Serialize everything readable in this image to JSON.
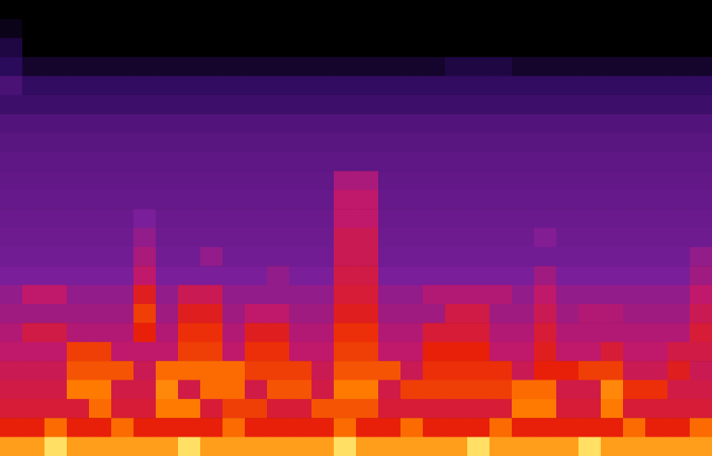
{
  "chart_data": {
    "type": "heatmap",
    "tick_labels": false,
    "zlim": [
      0,
      100
    ],
    "cells": [
      [
        0,
        0,
        0,
        0,
        0,
        0,
        0,
        0,
        0,
        0,
        0,
        0,
        0,
        0,
        0,
        0,
        0,
        0,
        0,
        0,
        0,
        0,
        0,
        0,
        0,
        0,
        0,
        0,
        0,
        0,
        0,
        0
      ],
      [
        5,
        0,
        0,
        0,
        0,
        0,
        0,
        0,
        0,
        0,
        0,
        0,
        0,
        0,
        0,
        0,
        0,
        0,
        0,
        0,
        0,
        0,
        0,
        0,
        0,
        0,
        0,
        0,
        0,
        0,
        0,
        0
      ],
      [
        15,
        0,
        0,
        0,
        0,
        0,
        0,
        0,
        0,
        0,
        0,
        0,
        0,
        0,
        0,
        0,
        0,
        0,
        0,
        0,
        0,
        0,
        0,
        0,
        0,
        0,
        0,
        0,
        0,
        0,
        0,
        0
      ],
      [
        20,
        10,
        10,
        10,
        10,
        10,
        10,
        10,
        10,
        10,
        10,
        10,
        10,
        10,
        10,
        10,
        10,
        10,
        10,
        10,
        15,
        15,
        15,
        10,
        10,
        10,
        10,
        10,
        10,
        10,
        10,
        10
      ],
      [
        28,
        22,
        22,
        22,
        22,
        22,
        22,
        22,
        22,
        22,
        22,
        22,
        22,
        22,
        22,
        22,
        22,
        22,
        22,
        22,
        22,
        22,
        22,
        22,
        22,
        22,
        22,
        22,
        22,
        22,
        22,
        22
      ],
      [
        25,
        25,
        25,
        25,
        25,
        25,
        25,
        25,
        25,
        25,
        25,
        25,
        25,
        25,
        25,
        25,
        25,
        25,
        25,
        25,
        25,
        25,
        25,
        25,
        25,
        25,
        25,
        25,
        25,
        25,
        25,
        25
      ],
      [
        30,
        30,
        30,
        30,
        30,
        30,
        30,
        30,
        30,
        30,
        30,
        30,
        30,
        30,
        30,
        30,
        30,
        30,
        30,
        30,
        30,
        30,
        30,
        30,
        30,
        30,
        30,
        30,
        30,
        30,
        30,
        30
      ],
      [
        32,
        32,
        32,
        32,
        32,
        32,
        32,
        32,
        32,
        32,
        32,
        32,
        32,
        32,
        32,
        32,
        32,
        32,
        32,
        32,
        32,
        32,
        32,
        32,
        32,
        32,
        32,
        32,
        32,
        32,
        32,
        32
      ],
      [
        33,
        33,
        33,
        33,
        33,
        33,
        33,
        33,
        33,
        33,
        33,
        33,
        33,
        33,
        33,
        33,
        33,
        33,
        33,
        33,
        33,
        33,
        33,
        33,
        33,
        33,
        33,
        33,
        33,
        33,
        33,
        33
      ],
      [
        34,
        34,
        34,
        34,
        34,
        34,
        34,
        34,
        34,
        34,
        34,
        34,
        34,
        34,
        34,
        50,
        50,
        34,
        34,
        34,
        34,
        34,
        34,
        34,
        34,
        34,
        34,
        34,
        34,
        34,
        34,
        34
      ],
      [
        35,
        35,
        35,
        35,
        35,
        35,
        35,
        35,
        35,
        35,
        35,
        35,
        35,
        35,
        35,
        55,
        55,
        35,
        35,
        35,
        35,
        35,
        35,
        35,
        35,
        35,
        35,
        35,
        35,
        35,
        35,
        35
      ],
      [
        36,
        36,
        36,
        36,
        36,
        36,
        40,
        36,
        36,
        36,
        36,
        36,
        36,
        36,
        36,
        55,
        55,
        36,
        36,
        36,
        36,
        36,
        36,
        36,
        36,
        36,
        36,
        36,
        36,
        36,
        36,
        36
      ],
      [
        37,
        37,
        37,
        37,
        37,
        37,
        45,
        37,
        37,
        37,
        37,
        37,
        37,
        37,
        37,
        58,
        58,
        37,
        37,
        37,
        37,
        37,
        37,
        37,
        42,
        37,
        37,
        37,
        37,
        37,
        37,
        37
      ],
      [
        38,
        38,
        38,
        38,
        38,
        38,
        50,
        38,
        38,
        45,
        38,
        38,
        38,
        38,
        38,
        58,
        58,
        38,
        38,
        38,
        38,
        38,
        38,
        38,
        38,
        38,
        38,
        38,
        38,
        38,
        38,
        45
      ],
      [
        40,
        40,
        40,
        40,
        40,
        40,
        55,
        40,
        40,
        40,
        40,
        40,
        45,
        40,
        40,
        60,
        60,
        40,
        40,
        40,
        40,
        40,
        40,
        40,
        48,
        40,
        40,
        40,
        40,
        40,
        40,
        48
      ],
      [
        45,
        55,
        55,
        45,
        45,
        45,
        65,
        45,
        58,
        58,
        45,
        45,
        45,
        45,
        45,
        62,
        62,
        45,
        45,
        52,
        52,
        52,
        52,
        45,
        55,
        45,
        45,
        45,
        45,
        45,
        45,
        55
      ],
      [
        48,
        48,
        48,
        48,
        48,
        48,
        72,
        48,
        65,
        65,
        48,
        55,
        55,
        48,
        48,
        65,
        65,
        48,
        48,
        48,
        60,
        60,
        48,
        48,
        58,
        48,
        52,
        52,
        48,
        48,
        48,
        58
      ],
      [
        52,
        60,
        60,
        52,
        52,
        52,
        68,
        52,
        70,
        70,
        52,
        65,
        65,
        52,
        52,
        70,
        70,
        52,
        52,
        62,
        62,
        62,
        52,
        52,
        62,
        52,
        52,
        52,
        52,
        52,
        52,
        62
      ],
      [
        55,
        55,
        55,
        72,
        72,
        55,
        55,
        55,
        72,
        72,
        55,
        70,
        70,
        55,
        55,
        72,
        72,
        55,
        55,
        68,
        68,
        68,
        55,
        55,
        65,
        55,
        55,
        62,
        55,
        55,
        60,
        60
      ],
      [
        58,
        58,
        58,
        75,
        75,
        75,
        58,
        78,
        78,
        78,
        78,
        72,
        72,
        72,
        58,
        75,
        75,
        75,
        58,
        70,
        70,
        70,
        70,
        58,
        68,
        68,
        72,
        72,
        58,
        58,
        65,
        58
      ],
      [
        60,
        60,
        60,
        80,
        80,
        60,
        60,
        82,
        60,
        78,
        78,
        60,
        75,
        75,
        60,
        80,
        80,
        60,
        72,
        72,
        72,
        72,
        72,
        78,
        78,
        60,
        60,
        82,
        70,
        70,
        60,
        60
      ],
      [
        62,
        62,
        62,
        62,
        78,
        62,
        62,
        80,
        80,
        62,
        72,
        72,
        62,
        62,
        75,
        75,
        75,
        62,
        62,
        62,
        62,
        62,
        62,
        80,
        80,
        62,
        62,
        80,
        62,
        62,
        62,
        62
      ],
      [
        68,
        68,
        78,
        68,
        68,
        78,
        68,
        68,
        68,
        68,
        78,
        68,
        68,
        68,
        68,
        78,
        68,
        68,
        78,
        68,
        68,
        68,
        78,
        68,
        68,
        68,
        68,
        68,
        78,
        68,
        68,
        78
      ],
      [
        85,
        85,
        95,
        85,
        85,
        85,
        85,
        85,
        95,
        85,
        85,
        85,
        85,
        85,
        85,
        95,
        85,
        85,
        85,
        85,
        85,
        95,
        85,
        85,
        85,
        85,
        95,
        85,
        85,
        85,
        85,
        85
      ]
    ]
  }
}
